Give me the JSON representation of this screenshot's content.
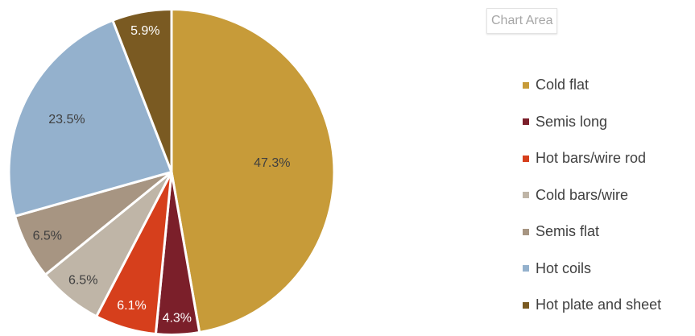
{
  "chart_data": {
    "type": "pie",
    "categories": [
      "Cold flat",
      "Semis long",
      "Hot bars/wire rod",
      "Cold bars/wire",
      "Semis flat",
      "Hot coils",
      "Hot plate and sheet"
    ],
    "values": [
      47.3,
      4.3,
      6.1,
      6.5,
      6.5,
      23.5,
      5.9
    ],
    "labels": [
      "47.3%",
      "4.3%",
      "6.1%",
      "6.5%",
      "6.5%",
      "23.5%",
      "5.9%"
    ],
    "colors": [
      "#C79B39",
      "#7B1F2A",
      "#D63F1C",
      "#BFB5A7",
      "#A79582",
      "#94B1CD",
      "#7A5A22"
    ],
    "label_colors": [
      "#404040",
      "#ffffff",
      "#ffffff",
      "#404040",
      "#404040",
      "#404040",
      "#ffffff"
    ],
    "start_angle_deg": 0,
    "direction": "clockwise",
    "legend_position": "right",
    "title": ""
  },
  "tooltip": {
    "text": "Chart Area"
  }
}
